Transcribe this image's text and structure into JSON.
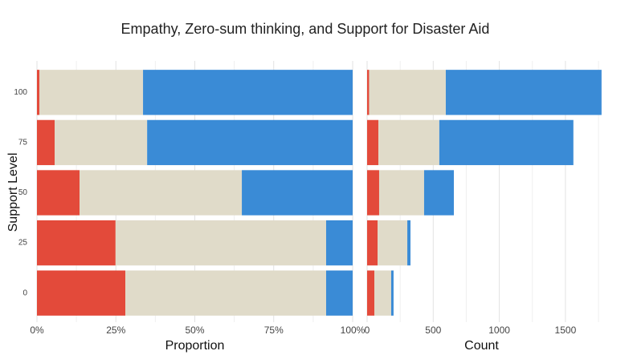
{
  "chart_data": [
    {
      "type": "stacked-barh",
      "title": "Empathy, Zero-sum thinking, and Support for Disaster Aid",
      "ylabel": "Support Level",
      "xlabel": "Proportion",
      "categories": [
        0,
        25,
        50,
        75,
        100
      ],
      "series": [
        {
          "color": "#e34a3a",
          "values": [
            28.0,
            24.9,
            13.5,
            5.6,
            0.8
          ]
        },
        {
          "color": "#e0dbc9",
          "values": [
            63.6,
            66.7,
            51.4,
            29.3,
            32.8
          ]
        },
        {
          "color": "#3a8bd6",
          "values": [
            8.4,
            8.4,
            35.1,
            65.1,
            66.4
          ]
        }
      ],
      "xlim": [
        0,
        100
      ],
      "xticks": [
        {
          "value": 0,
          "label": "0%"
        },
        {
          "value": 25,
          "label": "25%"
        },
        {
          "value": 50,
          "label": "50%"
        },
        {
          "value": 75,
          "label": "75%"
        },
        {
          "value": 100,
          "label": "100%"
        }
      ],
      "xminor": [
        12.5,
        37.5,
        62.5,
        87.5
      ],
      "grid": true
    },
    {
      "type": "stacked-barh",
      "xlabel": "Count",
      "series": [
        {
          "color": "#e34a3a",
          "values": [
            55,
            79,
            91,
            85,
            15
          ]
        },
        {
          "color": "#e0dbc9",
          "values": [
            127,
            225,
            340,
            461,
            580
          ]
        },
        {
          "color": "#3a8bd6",
          "values": [
            18,
            24,
            225,
            1014,
            1178
          ]
        }
      ],
      "xlim": [
        0,
        1780
      ],
      "xticks": [
        0,
        500,
        1000,
        1500
      ],
      "xminor": [
        250,
        750,
        1250,
        1750
      ],
      "grid": true
    }
  ]
}
